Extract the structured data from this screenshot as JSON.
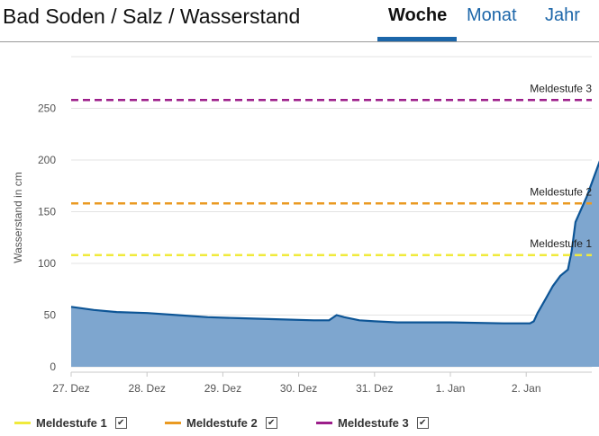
{
  "header": {
    "title": "Bad Soden / Salz / Wasserstand",
    "tabs": [
      {
        "label": "Woche",
        "active": true
      },
      {
        "label": "Monat",
        "active": false
      },
      {
        "label": "Jahr",
        "active": false
      }
    ]
  },
  "colors": {
    "accent": "#1c66a9",
    "area_fill": "#7ea6cf",
    "area_line": "#0d5596",
    "meldestufe_1": "#f0ea3c",
    "meldestufe_2": "#ea9a22",
    "meldestufe_3": "#9c1e8a"
  },
  "chart_data": {
    "type": "area",
    "title": "",
    "xlabel": "",
    "ylabel": "Wasserstand in cm",
    "ylim": [
      0,
      300
    ],
    "yticks": [
      0,
      50,
      100,
      150,
      200,
      250
    ],
    "grid": true,
    "xticks": [
      "27. Dez",
      "28. Dez",
      "29. Dez",
      "30. Dez",
      "31. Dez",
      "1. Jan",
      "2. Jan"
    ],
    "x_unit": "days since first tick (27. Dez = 0)",
    "series": [
      {
        "name": "Wasserstand",
        "x": [
          0,
          0.3,
          0.6,
          1.0,
          1.4,
          1.8,
          2.2,
          2.7,
          3.2,
          3.4,
          3.5,
          3.6,
          3.8,
          4.0,
          4.3,
          5.0,
          5.7,
          5.8,
          6.05,
          6.1,
          6.15,
          6.25,
          6.35,
          6.45,
          6.55,
          6.6,
          6.65,
          6.8,
          6.95,
          7.05,
          7.18
        ],
        "y": [
          58,
          55,
          53,
          52,
          50,
          48,
          47,
          46,
          45,
          45,
          50,
          48,
          45,
          44,
          43,
          43,
          42,
          42,
          42,
          44,
          52,
          65,
          78,
          88,
          94,
          112,
          140,
          165,
          195,
          215,
          226
        ]
      }
    ],
    "thresholds": [
      {
        "name": "Meldestufe 1",
        "value": 108,
        "label": "Meldestufe 1",
        "color": "#f0ea3c"
      },
      {
        "name": "Meldestufe 2",
        "value": 158,
        "label": "Meldestufe 2",
        "color": "#ea9a22"
      },
      {
        "name": "Meldestufe 3",
        "value": 258,
        "label": "Meldestufe 3",
        "color": "#9c1e8a"
      }
    ]
  },
  "legend": {
    "items": [
      {
        "label": "Meldestufe 1",
        "checked": true,
        "check_glyph": "✔"
      },
      {
        "label": "Meldestufe 2",
        "checked": true,
        "check_glyph": "✔"
      },
      {
        "label": "Meldestufe 3",
        "checked": true,
        "check_glyph": "✔"
      }
    ]
  }
}
